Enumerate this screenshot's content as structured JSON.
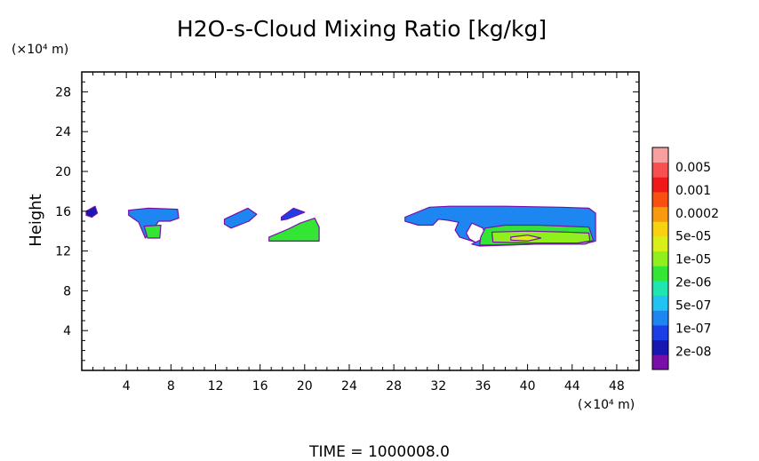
{
  "chart_data": {
    "type": "heatmap",
    "title": "H2O-s-Cloud Mixing Ratio [kg/kg]",
    "ylabel": "Height",
    "xlabel": "",
    "x_unit": "(×10⁴ m)",
    "y_unit": "(×10⁴ m)",
    "xlim": [
      0,
      50
    ],
    "ylim": [
      0,
      30
    ],
    "x_ticks": [
      4,
      8,
      12,
      16,
      20,
      24,
      28,
      32,
      36,
      40,
      44,
      48
    ],
    "y_ticks": [
      4,
      8,
      12,
      16,
      20,
      24,
      28
    ],
    "footer": "TIME  =  1000008.0",
    "colorbar": {
      "labels": [
        "0.005",
        "0.001",
        "0.0002",
        "5e-05",
        "1e-05",
        "2e-06",
        "5e-07",
        "1e-07",
        "2e-08"
      ],
      "colors": [
        "#7a0fa8",
        "#1818b0",
        "#1b3fe6",
        "#1e86f0",
        "#22c3f0",
        "#1fe6b0",
        "#33e633",
        "#8ff01e",
        "#d8f018",
        "#f8d210",
        "#f89a10",
        "#f85010",
        "#f01818",
        "#f85050",
        "#f8a0a0"
      ]
    },
    "series": [
      {
        "x": [
          0.4,
          1.2,
          1.4,
          0.9,
          0.4
        ],
        "y": [
          16.0,
          16.5,
          15.8,
          15.4,
          15.6
        ],
        "color": "#1818b0"
      },
      {
        "x": [
          4.2,
          6.0,
          8.6,
          8.7,
          7.9,
          6.9,
          6.4,
          5.7,
          5.1,
          4.2
        ],
        "y": [
          16.1,
          16.3,
          16.2,
          15.3,
          15.0,
          15.0,
          14.2,
          13.3,
          14.9,
          15.6
        ],
        "color": "#1e86f0"
      },
      {
        "x": [
          5.6,
          7.1,
          7.0,
          5.9
        ],
        "y": [
          14.5,
          14.6,
          13.3,
          13.3
        ],
        "color": "#33e633"
      },
      {
        "x": [
          12.8,
          14.9,
          15.7,
          15.0,
          13.4,
          12.8
        ],
        "y": [
          15.2,
          16.3,
          15.7,
          15.0,
          14.3,
          14.7
        ],
        "color": "#1e86f0"
      },
      {
        "x": [
          17.9,
          19.0,
          20.0,
          19.1,
          18.4,
          17.9
        ],
        "y": [
          15.4,
          16.3,
          15.9,
          15.5,
          15.2,
          15.1
        ],
        "color": "#1b3fe6"
      },
      {
        "x": [
          16.8,
          18.5,
          19.6,
          20.9,
          21.3,
          21.3,
          16.8
        ],
        "y": [
          13.4,
          14.2,
          14.8,
          15.3,
          14.4,
          13.0,
          13.0
        ],
        "color": "#33e633"
      },
      {
        "x": [
          29.0,
          31.2,
          33.0,
          38.0,
          43.0,
          45.5,
          46.1,
          46.1,
          45.0,
          41.0,
          35.7,
          35.0,
          36.3,
          36.0,
          35.0,
          34.5,
          34.8,
          35.3,
          33.9,
          33.5,
          33.8,
          32.8,
          32.0,
          31.5,
          30.2,
          29.0
        ],
        "y": [
          15.4,
          16.4,
          16.5,
          16.5,
          16.4,
          16.3,
          15.8,
          13.0,
          12.7,
          12.7,
          12.5,
          12.7,
          13.4,
          14.3,
          14.8,
          13.8,
          13.2,
          12.9,
          13.4,
          14.1,
          14.9,
          15.1,
          15.2,
          14.6,
          14.6,
          15.0
        ],
        "color": "#1e86f0"
      },
      {
        "x": [
          36.2,
          38.0,
          41.0,
          45.5,
          45.9,
          45.2,
          41.0,
          37.0,
          35.7,
          35.8,
          36.2
        ],
        "y": [
          14.3,
          14.6,
          14.6,
          14.4,
          13.1,
          12.7,
          12.7,
          12.6,
          12.6,
          13.4,
          14.3
        ],
        "color": "#33e633"
      },
      {
        "x": [
          36.8,
          40.0,
          43.5,
          45.5,
          45.6,
          44.5,
          40.0,
          36.9,
          36.8
        ],
        "y": [
          13.9,
          14.0,
          13.9,
          13.8,
          13.0,
          12.8,
          12.8,
          12.9,
          13.9
        ],
        "color": "#8ff01e"
      },
      {
        "x": [
          38.5,
          40.0,
          41.2,
          40.0,
          38.5
        ],
        "y": [
          13.4,
          13.6,
          13.3,
          13.0,
          13.1
        ],
        "color": "#d8f018"
      }
    ]
  }
}
